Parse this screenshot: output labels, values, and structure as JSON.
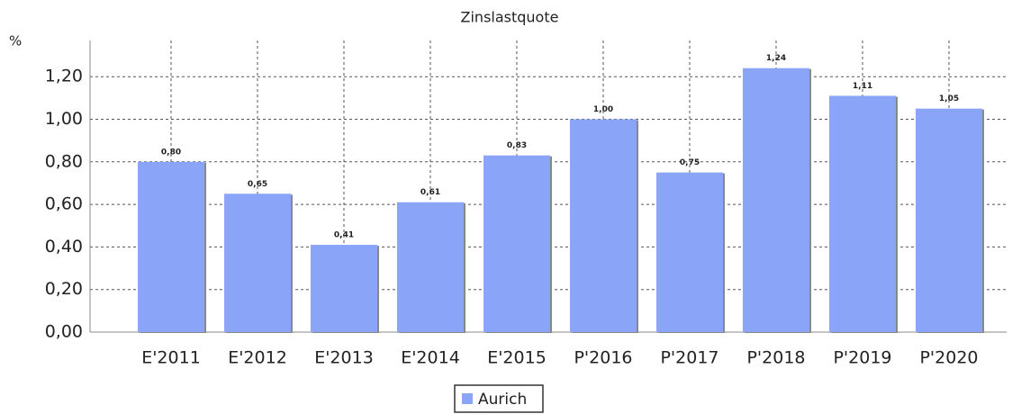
{
  "chart_data": {
    "type": "bar",
    "title": "Zinslastquote",
    "y_label": "%",
    "categories": [
      "E'2011",
      "E'2012",
      "E'2013",
      "E'2014",
      "E'2015",
      "P'2016",
      "P'2017",
      "P'2018",
      "P'2019",
      "P'2020"
    ],
    "series": [
      {
        "name": "Aurich",
        "color": "#8aa4f8",
        "values": [
          0.8,
          0.65,
          0.41,
          0.61,
          0.83,
          1.0,
          0.75,
          1.24,
          1.11,
          1.05
        ],
        "value_labels": [
          "0,80",
          "0,65",
          "0,41",
          "0,61",
          "0,83",
          "1,00",
          "0,75",
          "1,24",
          "1,11",
          "1,05"
        ]
      }
    ],
    "ylim": [
      0,
      1.37
    ],
    "yticks": [
      {
        "value": 0,
        "label": "0,00"
      },
      {
        "value": 0.2,
        "label": "0,20"
      },
      {
        "value": 0.4,
        "label": "0,40"
      },
      {
        "value": 0.6,
        "label": "0,60"
      },
      {
        "value": 0.8,
        "label": "0,80"
      },
      {
        "value": 1.0,
        "label": "1,00"
      },
      {
        "value": 1.2,
        "label": "1,20"
      }
    ],
    "grid": true,
    "legend": "bottom"
  }
}
